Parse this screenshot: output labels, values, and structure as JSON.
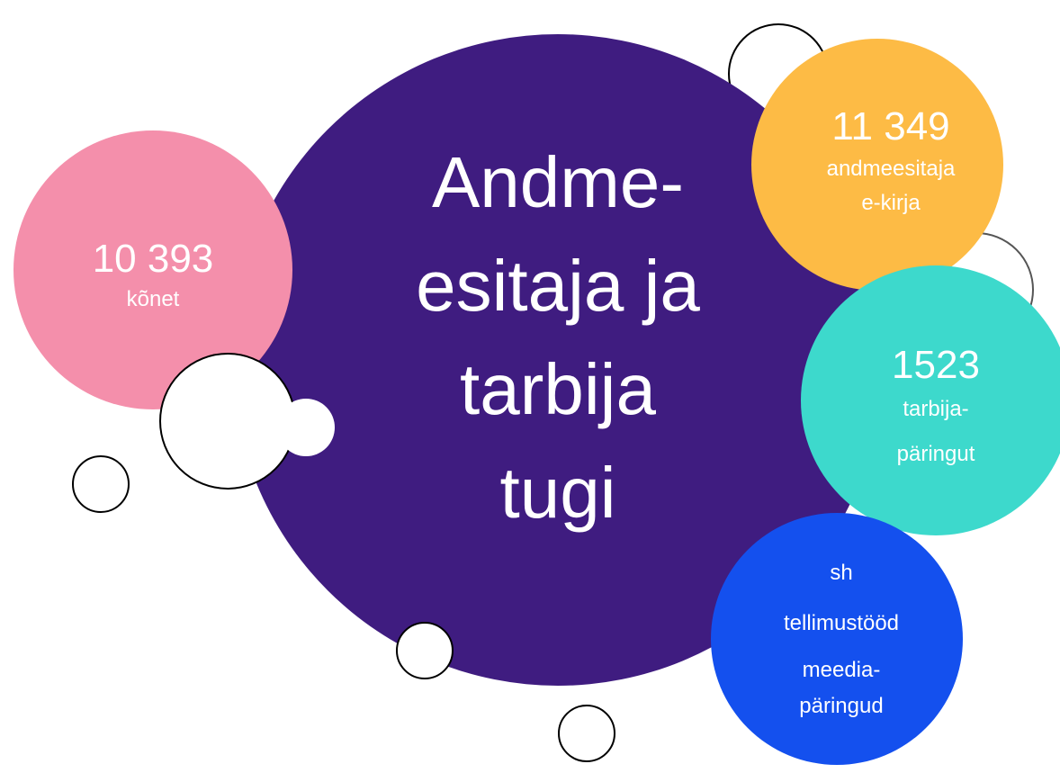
{
  "title": [
    "Andme-",
    "esitaja ja",
    "tarbija",
    "tugi"
  ],
  "bubbles": [
    {
      "number": "10 393",
      "lines": [
        "kõnet"
      ]
    },
    {
      "number": "11 349",
      "lines": [
        "andmeesitaja",
        "e-kirja"
      ]
    },
    {
      "number": "1523",
      "lines": [
        "tarbija-",
        "päringut"
      ]
    },
    {
      "lines": [
        "sh",
        "tellimustööd",
        "meedia-",
        "päringud"
      ]
    }
  ]
}
